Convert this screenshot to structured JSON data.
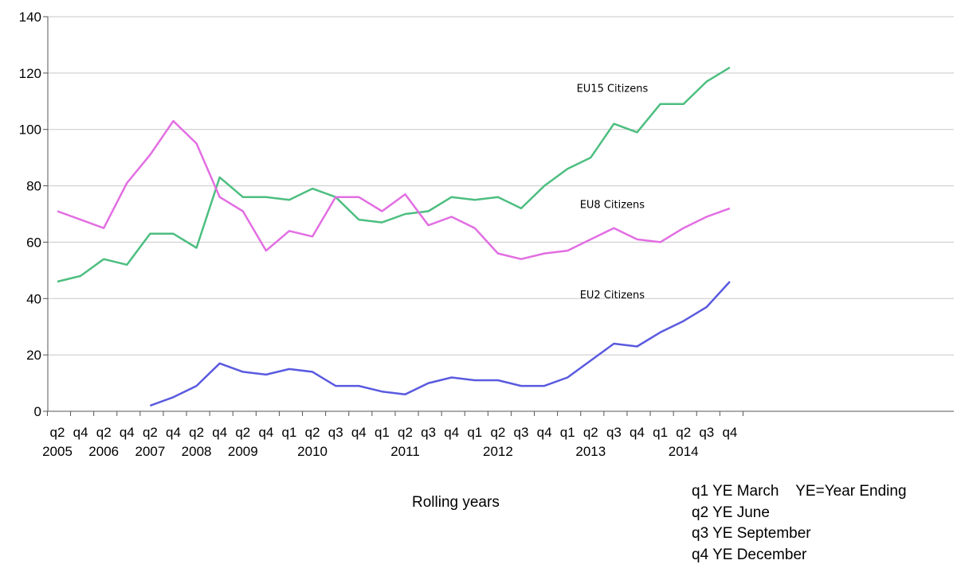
{
  "chart_data": {
    "type": "line",
    "title": "",
    "ylabel": "",
    "xlabel": "Rolling years",
    "ylim": [
      0,
      140
    ],
    "yticks": [
      0,
      20,
      40,
      60,
      80,
      100,
      120,
      140
    ],
    "grid": true,
    "x": [
      "2005 q2",
      "2005 q4",
      "2006 q2",
      "2006 q4",
      "2007 q2",
      "2007 q4",
      "2008 q2",
      "2008 q4",
      "2009 q2",
      "2009 q4",
      "2010 q1",
      "2010 q2",
      "2010 q3",
      "2010 q4",
      "2011 q1",
      "2011 q2",
      "2011 q3",
      "2011 q4",
      "2012 q1",
      "2012 q2",
      "2012 q3",
      "2012 q4",
      "2013 q1",
      "2013 q2",
      "2013 q3",
      "2013 q4",
      "2014 q1",
      "2014 q2",
      "2014 q3",
      "2014 q4"
    ],
    "x_tick_labels": [
      "q2",
      "q4",
      "q2",
      "q4",
      "q2",
      "q4",
      "q2",
      "q4",
      "q2",
      "q4",
      "q1",
      "q2",
      "q3",
      "q4",
      "q1",
      "q2",
      "q3",
      "q4",
      "q1",
      "q2",
      "q3",
      "q4",
      "q1",
      "q2",
      "q3",
      "q4",
      "q1",
      "q2",
      "q3",
      "q4"
    ],
    "x_year_labels": [
      {
        "label": "2005",
        "x_index": 0
      },
      {
        "label": "2006",
        "x_index": 2
      },
      {
        "label": "2007",
        "x_index": 4
      },
      {
        "label": "2008",
        "x_index": 6
      },
      {
        "label": "2009",
        "x_index": 8
      },
      {
        "label": "2010",
        "x_index": 11
      },
      {
        "label": "2011",
        "x_index": 15
      },
      {
        "label": "2012",
        "x_index": 19
      },
      {
        "label": "2013",
        "x_index": 23
      },
      {
        "label": "2014",
        "x_index": 27
      }
    ],
    "series": [
      {
        "name": "EU15 Citizens",
        "color": "#4dbe80",
        "values": [
          46,
          48,
          54,
          52,
          63,
          63,
          58,
          83,
          76,
          76,
          75,
          79,
          76,
          68,
          67,
          70,
          71,
          76,
          75,
          76,
          72,
          80,
          86,
          90,
          102,
          99,
          109,
          109,
          117,
          122
        ]
      },
      {
        "name": "EU8 Citizens",
        "color": "#e26ee2",
        "values": [
          71,
          68,
          65,
          81,
          91,
          103,
          95,
          76,
          71,
          57,
          64,
          62,
          76,
          76,
          71,
          77,
          66,
          69,
          65,
          56,
          54,
          56,
          57,
          61,
          65,
          61,
          60,
          65,
          69,
          72
        ]
      },
      {
        "name": "EU2 Citizens",
        "color": "#5a5ae0",
        "values": [
          null,
          null,
          null,
          null,
          2,
          5,
          9,
          17,
          14,
          13,
          15,
          14,
          9,
          9,
          7,
          6,
          10,
          12,
          11,
          11,
          9,
          9,
          12,
          18,
          24,
          23,
          28,
          32,
          37,
          46
        ]
      }
    ]
  },
  "legend_note": [
    "q1 YE March    YE=Year Ending",
    "q2 YE June",
    "q3 YE September",
    "q4 YE December"
  ]
}
